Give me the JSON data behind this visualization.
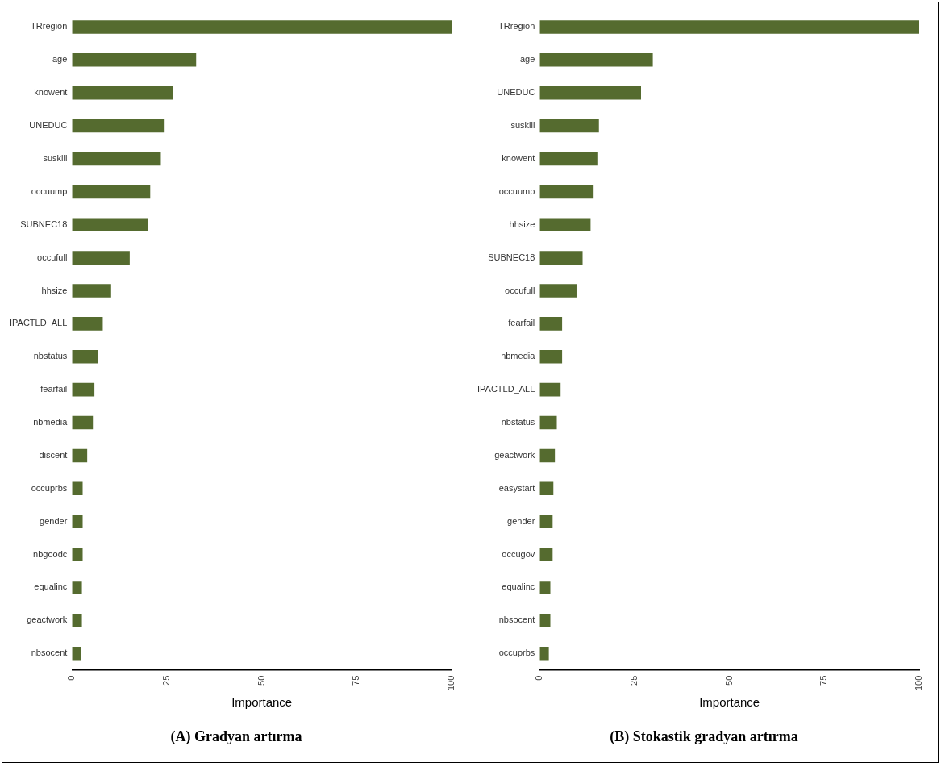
{
  "chart_data": [
    {
      "type": "bar",
      "orientation": "horizontal",
      "title": "(A) Gradyan artırma",
      "xlabel": "Importance",
      "categories": [
        "TRregion",
        "age",
        "knowent",
        "UNEDUC",
        "suskill",
        "occuump",
        "SUBNEC18",
        "occufull",
        "hhsize",
        "IPACTLD_ALL",
        "nbstatus",
        "fearfail",
        "nbmedia",
        "discent",
        "occuprbs",
        "gender",
        "nbgoodc",
        "equalinc",
        "geactwork",
        "nbsocent"
      ],
      "values": [
        100,
        32.7,
        26.5,
        24.4,
        23.4,
        20.6,
        20,
        15.2,
        10.3,
        8.1,
        6.9,
        5.9,
        5.5,
        4,
        2.8,
        2.8,
        2.8,
        2.6,
        2.6,
        2.4
      ],
      "color": "#556b2f",
      "xlim": [
        0,
        100
      ],
      "xticks": [
        0,
        25,
        50,
        75,
        100
      ],
      "grid": false,
      "legend": false
    },
    {
      "type": "bar",
      "orientation": "horizontal",
      "title": "(B) Stokastik gradyan artırma",
      "xlabel": "Importance",
      "categories": [
        "TRregion",
        "age",
        "UNEDUC",
        "suskill",
        "knowent",
        "occuump",
        "hhsize",
        "SUBNEC18",
        "occufull",
        "fearfail",
        "nbmedia",
        "IPACTLD_ALL",
        "nbstatus",
        "geactwork",
        "easystart",
        "gender",
        "occugov",
        "equalinc",
        "nbsocent",
        "occuprbs"
      ],
      "values": [
        100,
        29.8,
        26.7,
        15.6,
        15.4,
        14.2,
        13.4,
        11.3,
        9.7,
        5.9,
        5.9,
        5.5,
        4.5,
        4,
        3.6,
        3.4,
        3.4,
        2.8,
        2.8,
        2.4
      ],
      "color": "#556b2f",
      "xlim": [
        0,
        100
      ],
      "xticks": [
        0,
        25,
        50,
        75,
        100
      ],
      "grid": false,
      "legend": false
    }
  ]
}
